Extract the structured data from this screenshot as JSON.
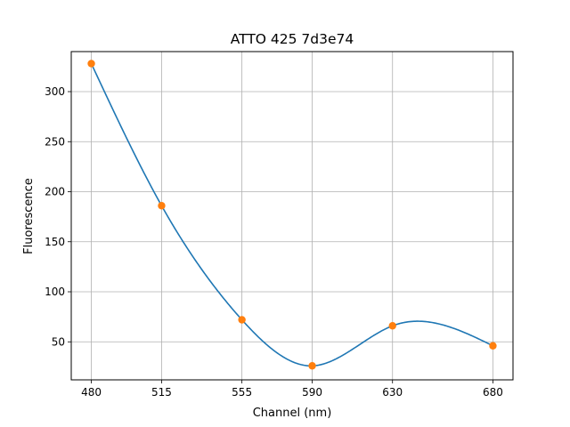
{
  "chart_data": {
    "type": "line",
    "title": "ATTO 425 7d3e74",
    "xlabel": "Channel (nm)",
    "ylabel": "Fluorescence",
    "x": [
      480,
      515,
      555,
      590,
      630,
      680
    ],
    "x_tick_labels": [
      "480",
      "515",
      "555",
      "590",
      "630",
      "680"
    ],
    "y_ticks": [
      50,
      100,
      150,
      200,
      250,
      300
    ],
    "y_tick_labels": [
      "50",
      "100",
      "150",
      "200",
      "250",
      "300"
    ],
    "xlim": [
      470,
      690
    ],
    "ylim": [
      12,
      340
    ],
    "grid": true,
    "series": [
      {
        "kind": "smooth-curve",
        "color": "#1f77b4",
        "values": [
          328,
          186,
          72,
          26,
          66,
          46
        ]
      },
      {
        "kind": "markers",
        "color": "#ff7f0e",
        "values": [
          328,
          186,
          72,
          26,
          66,
          46
        ]
      }
    ]
  }
}
